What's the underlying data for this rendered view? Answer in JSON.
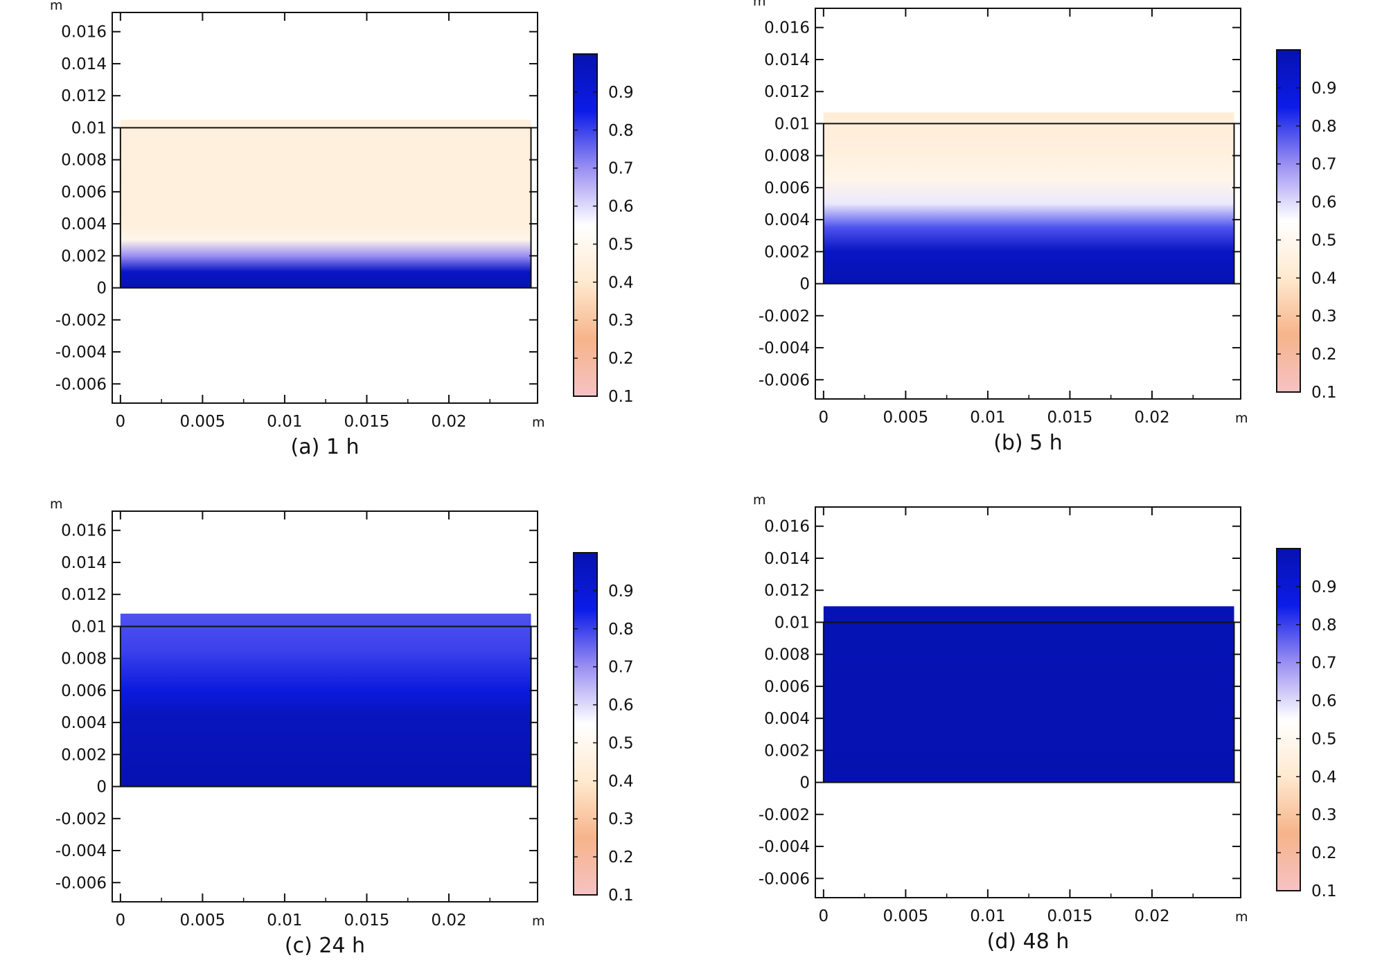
{
  "figure": {
    "colors": {
      "colormap": [
        "#f6c2c4",
        "#f6b48a",
        "#ffe9cf",
        "#ffffff",
        "#9a8ff2",
        "#0c1ce8",
        "#0612b0"
      ],
      "frame": "#111111"
    }
  },
  "chart_data": [
    {
      "type": "heatmap",
      "caption": "(a) 1 h",
      "x_unit": "m",
      "y_unit": "m",
      "xlim": [
        -0.0005,
        0.0254
      ],
      "ylim": [
        -0.0072,
        0.0172
      ],
      "x_ticks": [
        0,
        0.005,
        0.01,
        0.015,
        0.02
      ],
      "x_tick_labels": [
        "0",
        "0.005",
        "0.01",
        "0.015",
        "0.02"
      ],
      "y_ticks": [
        0.016,
        0.014,
        0.012,
        0.01,
        0.008,
        0.006,
        0.004,
        0.002,
        0,
        -0.002,
        -0.004,
        -0.006
      ],
      "y_tick_labels": [
        "0.016",
        "0.014",
        "0.012",
        "0.01",
        "0.008",
        "0.006",
        "0.004",
        "0.002",
        "0",
        "-0.002",
        "-0.004",
        "-0.006"
      ],
      "domain": {
        "x": [
          0,
          0.025
        ],
        "y": [
          0,
          0.01
        ]
      },
      "field_top": 0.0105,
      "profile": [
        {
          "y": 0,
          "value": 0.99
        },
        {
          "y": 0.001,
          "value": 0.95
        },
        {
          "y": 0.002,
          "value": 0.7
        },
        {
          "y": 0.003,
          "value": 0.48
        },
        {
          "y": 0.004,
          "value": 0.44
        },
        {
          "y": 0.0105,
          "value": 0.44
        }
      ],
      "colorbar": {
        "range": [
          0.1,
          1.0
        ],
        "ticks": [
          0.9,
          0.8,
          0.7,
          0.6,
          0.5,
          0.4,
          0.3,
          0.2,
          0.1
        ],
        "tick_labels": [
          "0.9",
          "0.8",
          "0.7",
          "0.6",
          "0.5",
          "0.4",
          "0.3",
          "0.2",
          "0.1"
        ]
      },
      "grid": false
    },
    {
      "type": "heatmap",
      "caption": "(b) 5 h",
      "x_unit": "m",
      "y_unit": "m",
      "xlim": [
        -0.0005,
        0.0254
      ],
      "ylim": [
        -0.0072,
        0.0172
      ],
      "x_ticks": [
        0,
        0.005,
        0.01,
        0.015,
        0.02
      ],
      "x_tick_labels": [
        "0",
        "0.005",
        "0.01",
        "0.015",
        "0.02"
      ],
      "y_ticks": [
        0.016,
        0.014,
        0.012,
        0.01,
        0.008,
        0.006,
        0.004,
        0.002,
        0,
        -0.002,
        -0.004,
        -0.006
      ],
      "y_tick_labels": [
        "0.016",
        "0.014",
        "0.012",
        "0.01",
        "0.008",
        "0.006",
        "0.004",
        "0.002",
        "0",
        "-0.002",
        "-0.004",
        "-0.006"
      ],
      "domain": {
        "x": [
          0,
          0.025
        ],
        "y": [
          0,
          0.01
        ]
      },
      "field_top": 0.0107,
      "profile": [
        {
          "y": 0,
          "value": 0.99
        },
        {
          "y": 0.002,
          "value": 0.95
        },
        {
          "y": 0.0035,
          "value": 0.78
        },
        {
          "y": 0.005,
          "value": 0.58
        },
        {
          "y": 0.0065,
          "value": 0.48
        },
        {
          "y": 0.0085,
          "value": 0.44
        },
        {
          "y": 0.0107,
          "value": 0.43
        }
      ],
      "colorbar": {
        "range": [
          0.1,
          1.0
        ],
        "ticks": [
          0.9,
          0.8,
          0.7,
          0.6,
          0.5,
          0.4,
          0.3,
          0.2,
          0.1
        ],
        "tick_labels": [
          "0.9",
          "0.8",
          "0.7",
          "0.6",
          "0.5",
          "0.4",
          "0.3",
          "0.2",
          "0.1"
        ]
      },
      "grid": false
    },
    {
      "type": "heatmap",
      "caption": "(c) 24 h",
      "x_unit": "m",
      "y_unit": "m",
      "xlim": [
        -0.0005,
        0.0254
      ],
      "ylim": [
        -0.0072,
        0.0172
      ],
      "x_ticks": [
        0,
        0.005,
        0.01,
        0.015,
        0.02
      ],
      "x_tick_labels": [
        "0",
        "0.005",
        "0.01",
        "0.015",
        "0.02"
      ],
      "y_ticks": [
        0.016,
        0.014,
        0.012,
        0.01,
        0.008,
        0.006,
        0.004,
        0.002,
        0,
        -0.002,
        -0.004,
        -0.006
      ],
      "y_tick_labels": [
        "0.016",
        "0.014",
        "0.012",
        "0.01",
        "0.008",
        "0.006",
        "0.004",
        "0.002",
        "0",
        "-0.002",
        "-0.004",
        "-0.006"
      ],
      "domain": {
        "x": [
          0,
          0.025
        ],
        "y": [
          0,
          0.01
        ]
      },
      "field_top": 0.0108,
      "profile": [
        {
          "y": 0,
          "value": 1.0
        },
        {
          "y": 0.0045,
          "value": 0.96
        },
        {
          "y": 0.006,
          "value": 0.88
        },
        {
          "y": 0.0085,
          "value": 0.8
        },
        {
          "y": 0.0108,
          "value": 0.78
        }
      ],
      "colorbar": {
        "range": [
          0.1,
          1.0
        ],
        "ticks": [
          0.9,
          0.8,
          0.7,
          0.6,
          0.5,
          0.4,
          0.3,
          0.2,
          0.1
        ],
        "tick_labels": [
          "0.9",
          "0.8",
          "0.7",
          "0.6",
          "0.5",
          "0.4",
          "0.3",
          "0.2",
          "0.1"
        ]
      },
      "grid": false
    },
    {
      "type": "heatmap",
      "caption": "(d) 48 h",
      "x_unit": "m",
      "y_unit": "m",
      "xlim": [
        -0.0005,
        0.0254
      ],
      "ylim": [
        -0.0072,
        0.0172
      ],
      "x_ticks": [
        0,
        0.005,
        0.01,
        0.015,
        0.02
      ],
      "x_tick_labels": [
        "0",
        "0.005",
        "0.01",
        "0.015",
        "0.02"
      ],
      "y_ticks": [
        0.016,
        0.014,
        0.012,
        0.01,
        0.008,
        0.006,
        0.004,
        0.002,
        0,
        -0.002,
        -0.004,
        -0.006
      ],
      "y_tick_labels": [
        "0.016",
        "0.014",
        "0.012",
        "0.01",
        "0.008",
        "0.006",
        "0.004",
        "0.002",
        "0",
        "-0.002",
        "-0.004",
        "-0.006"
      ],
      "domain": {
        "x": [
          0,
          0.025
        ],
        "y": [
          0,
          0.01
        ]
      },
      "field_top": 0.011,
      "profile": [
        {
          "y": 0,
          "value": 1.0
        },
        {
          "y": 0.011,
          "value": 0.99
        }
      ],
      "colorbar": {
        "range": [
          0.1,
          1.0
        ],
        "ticks": [
          0.9,
          0.8,
          0.7,
          0.6,
          0.5,
          0.4,
          0.3,
          0.2,
          0.1
        ],
        "tick_labels": [
          "0.9",
          "0.8",
          "0.7",
          "0.6",
          "0.5",
          "0.4",
          "0.3",
          "0.2",
          "0.1"
        ]
      },
      "grid": false
    }
  ]
}
